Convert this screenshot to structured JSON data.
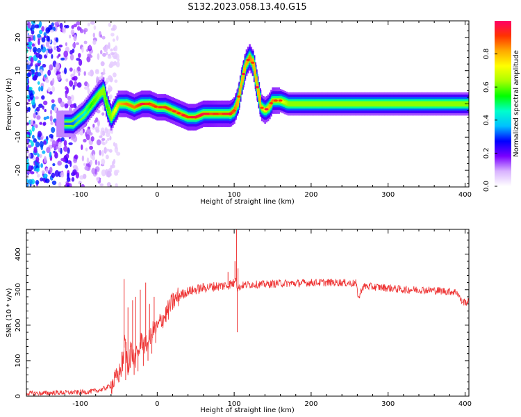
{
  "figure": {
    "title": "S132.2023.058.13.40.G15"
  },
  "chart_data": [
    {
      "type": "heatmap",
      "xlabel": "Height of straight line (km)",
      "ylabel": "Frequency (Hz)",
      "xlim": [
        -170,
        405
      ],
      "ylim": [
        -25,
        25
      ],
      "xticks": [
        -100,
        0,
        100,
        200,
        300,
        400
      ],
      "yticks": [
        -20,
        -10,
        0,
        10,
        20
      ],
      "colorbar": {
        "label": "Normalized spectral amplitude",
        "range": [
          0,
          1
        ],
        "ticks": [
          0.0,
          0.2,
          0.4,
          0.6,
          0.8
        ],
        "colors": [
          "#ffffff",
          "#d9b3ff",
          "#7a00ff",
          "#0000ff",
          "#00c0ff",
          "#00ffcc",
          "#00ff00",
          "#aaff00",
          "#ffff00",
          "#ffaa00",
          "#ff3300",
          "#ff0066"
        ]
      },
      "ridge": {
        "x": [
          -110,
          -95,
          -85,
          -75,
          -70,
          -65,
          -60,
          -50,
          -40,
          -30,
          -20,
          -10,
          0,
          10,
          20,
          30,
          40,
          50,
          60,
          70,
          80,
          90,
          95,
          100,
          105,
          110,
          115,
          120,
          125,
          130,
          135,
          140,
          145,
          150,
          160,
          170,
          200,
          250,
          300,
          350,
          405
        ],
        "freq": [
          -6,
          -3,
          0,
          3,
          4,
          -1,
          -4,
          0,
          0,
          -1,
          0,
          0,
          -1,
          -1,
          -2,
          -3,
          -4,
          -4,
          -3,
          -3,
          -3,
          -3,
          -3,
          -2,
          1,
          7,
          12,
          14,
          12,
          5,
          -1,
          -2,
          -1,
          1,
          1,
          0,
          0,
          0,
          0,
          0,
          0
        ],
        "amp": [
          0.35,
          0.45,
          0.55,
          0.6,
          0.6,
          0.55,
          0.6,
          0.75,
          0.8,
          0.8,
          0.85,
          0.85,
          0.8,
          0.85,
          0.8,
          0.8,
          0.85,
          0.85,
          0.9,
          0.9,
          0.85,
          0.85,
          0.85,
          0.8,
          0.75,
          0.75,
          0.75,
          0.8,
          0.75,
          0.75,
          0.75,
          0.7,
          0.75,
          0.8,
          0.7,
          0.6,
          0.6,
          0.6,
          0.6,
          0.6,
          0.6
        ]
      }
    },
    {
      "type": "line",
      "xlabel": "Height of straight line (km)",
      "ylabel": "SNR (10 * v/v)",
      "xlim": [
        -170,
        405
      ],
      "ylim": [
        0,
        470
      ],
      "xticks": [
        -100,
        0,
        100,
        200,
        300,
        400
      ],
      "yticks": [
        0,
        100,
        200,
        300,
        400
      ],
      "color": "#ee3333",
      "series": [
        {
          "x": [
            -170,
            -150,
            -130,
            -110,
            -90,
            -80,
            -70,
            -60,
            -55,
            -50,
            -45,
            -42,
            -40,
            -38,
            -35,
            -30,
            -25,
            -20,
            -15,
            -10,
            -5,
            0,
            5,
            10,
            15,
            20,
            25,
            30,
            40,
            50,
            60,
            70,
            80,
            90,
            95,
            100,
            102,
            104,
            106,
            110,
            120,
            140,
            160,
            180,
            200,
            220,
            240,
            250,
            258,
            262,
            266,
            270,
            280,
            300,
            320,
            340,
            360,
            380,
            390,
            395,
            400,
            405
          ],
          "y": [
            8,
            8,
            10,
            10,
            12,
            15,
            20,
            30,
            45,
            60,
            90,
            160,
            120,
            70,
            140,
            100,
            120,
            160,
            140,
            160,
            185,
            190,
            215,
            225,
            245,
            265,
            275,
            285,
            295,
            300,
            305,
            308,
            310,
            312,
            316,
            318,
            340,
            305,
            305,
            312,
            315,
            315,
            318,
            318,
            320,
            320,
            320,
            318,
            318,
            275,
            305,
            310,
            308,
            305,
            300,
            300,
            298,
            295,
            293,
            268,
            265,
            265
          ],
          "spikes": [
            {
              "x": -60,
              "y": 40
            },
            {
              "x": -46,
              "y": 125
            },
            {
              "x": -43,
              "y": 330
            },
            {
              "x": -41,
              "y": 45
            },
            {
              "x": -38,
              "y": 250
            },
            {
              "x": -35,
              "y": 80
            },
            {
              "x": -32,
              "y": 270
            },
            {
              "x": -30,
              "y": 60
            },
            {
              "x": -28,
              "y": 280
            },
            {
              "x": -25,
              "y": 70
            },
            {
              "x": -22,
              "y": 300
            },
            {
              "x": -18,
              "y": 85
            },
            {
              "x": -15,
              "y": 320
            },
            {
              "x": -12,
              "y": 100
            },
            {
              "x": -10,
              "y": 260
            },
            {
              "x": -7,
              "y": 120
            },
            {
              "x": -4,
              "y": 280
            },
            {
              "x": -2,
              "y": 150
            },
            {
              "x": 92,
              "y": 350
            },
            {
              "x": 101,
              "y": 380
            },
            {
              "x": 103,
              "y": 470
            },
            {
              "x": 104,
              "y": 180
            },
            {
              "x": 105,
              "y": 360
            }
          ]
        }
      ]
    }
  ]
}
